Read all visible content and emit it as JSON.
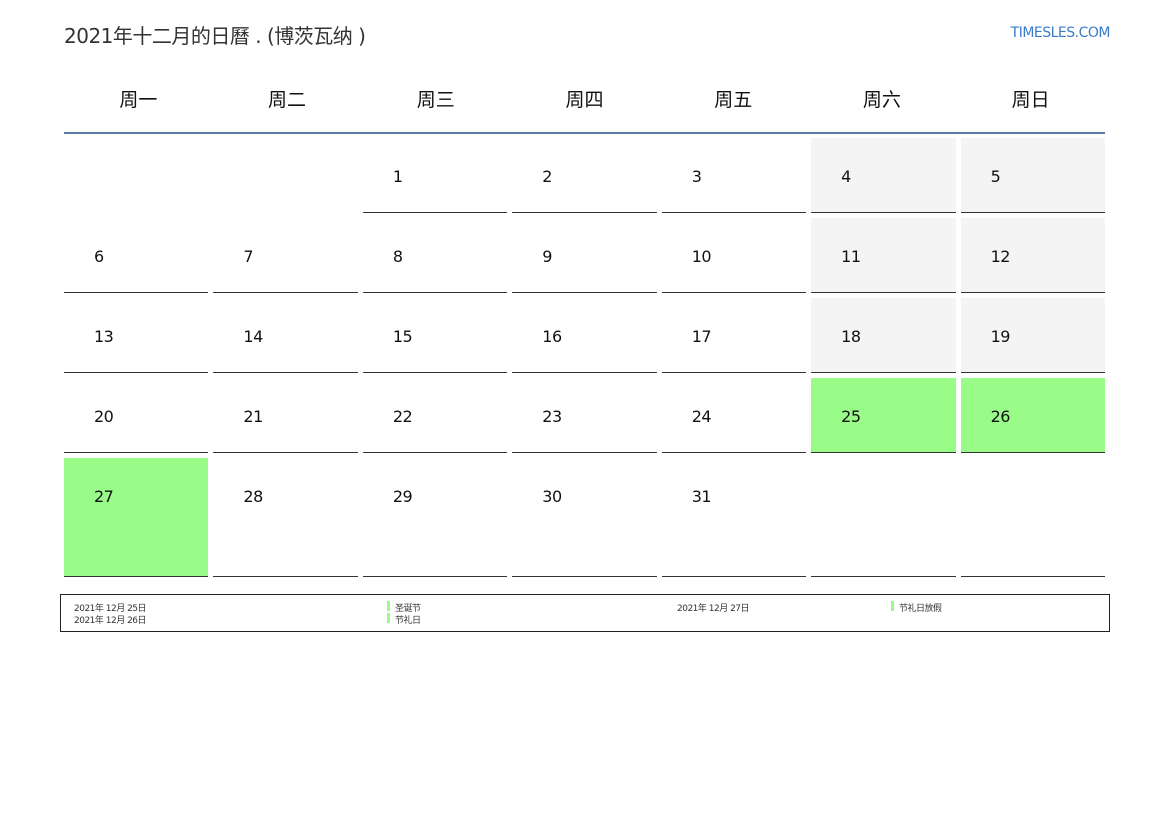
{
  "title": "2021年十二月的日曆 . (博茨瓦纳 )",
  "logo": "TIMESLES.COM",
  "weekdays": [
    "周一",
    "周二",
    "周三",
    "周四",
    "周五",
    "周六",
    "周日"
  ],
  "colors": {
    "holiday": "#9afc88",
    "weekend": "#f4f4f4",
    "header_line": "#5b7ba6"
  },
  "weeks": [
    [
      "",
      "",
      "1",
      "2",
      "3",
      "4",
      "5"
    ],
    [
      "6",
      "7",
      "8",
      "9",
      "10",
      "11",
      "12"
    ],
    [
      "13",
      "14",
      "15",
      "16",
      "17",
      "18",
      "19"
    ],
    [
      "20",
      "21",
      "22",
      "23",
      "24",
      "25",
      "26"
    ],
    [
      "27",
      "28",
      "29",
      "30",
      "31",
      "",
      ""
    ]
  ],
  "holiday_days": [
    "25",
    "26",
    "27"
  ],
  "legend": [
    {
      "date": "2021年 12月 25日",
      "name": "圣诞节"
    },
    {
      "date": "2021年 12月 26日",
      "name": "节礼日"
    },
    {
      "date": "2021年 12月 27日",
      "name": "节礼日放假"
    }
  ]
}
